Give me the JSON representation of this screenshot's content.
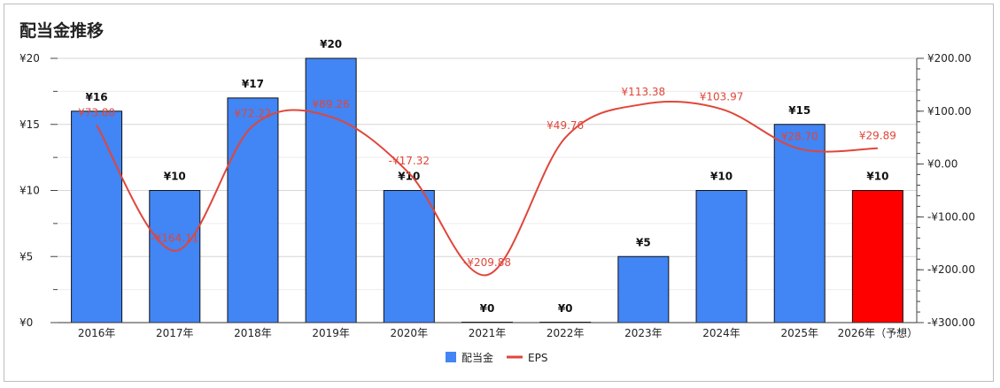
{
  "chart_data": {
    "type": "bar",
    "title": "配当金推移",
    "categories": [
      "2016年",
      "2017年",
      "2018年",
      "2019年",
      "2020年",
      "2021年",
      "2022年",
      "2023年",
      "2024年",
      "2025年",
      "2026年（予想）"
    ],
    "series": [
      {
        "name": "配当金",
        "type": "bar",
        "axis": "left",
        "values": [
          16,
          10,
          17,
          20,
          10,
          0,
          0,
          5,
          10,
          15,
          10
        ],
        "labels": [
          "¥16",
          "¥10",
          "¥17",
          "¥20",
          "¥10",
          "¥0",
          "¥0",
          "¥5",
          "¥10",
          "¥15",
          "¥10"
        ],
        "color": "#4285f4",
        "highlight_color": "#ff0000",
        "highlight_index": 10
      },
      {
        "name": "EPS",
        "type": "line",
        "axis": "right",
        "values": [
          73.8,
          -164.11,
          72.22,
          89.26,
          -17.32,
          -209.88,
          49.76,
          113.38,
          103.97,
          28.7,
          29.89
        ],
        "labels": [
          "¥73.80",
          "-¥164.11",
          "¥72.22",
          "¥89.26",
          "-¥17.32",
          "-¥209.88",
          "¥49.76",
          "¥113.38",
          "¥103.97",
          "¥28.70",
          "¥29.89"
        ],
        "color": "#e0463a"
      }
    ],
    "y_left": {
      "range": [
        0,
        20
      ],
      "ticks": [
        0,
        5,
        10,
        15,
        20
      ],
      "tick_labels": [
        "¥0",
        "¥5",
        "¥10",
        "¥15",
        "¥20"
      ]
    },
    "y_right": {
      "range": [
        -300,
        200
      ],
      "ticks": [
        -300,
        -200,
        -100,
        0,
        100,
        200
      ],
      "tick_labels": [
        "-¥300.00",
        "-¥200.00",
        "-¥100.00",
        "¥0.00",
        "¥100.00",
        "¥200.00"
      ]
    },
    "grid": true,
    "legend": {
      "position": "bottom",
      "items": [
        "配当金",
        "EPS"
      ]
    }
  }
}
